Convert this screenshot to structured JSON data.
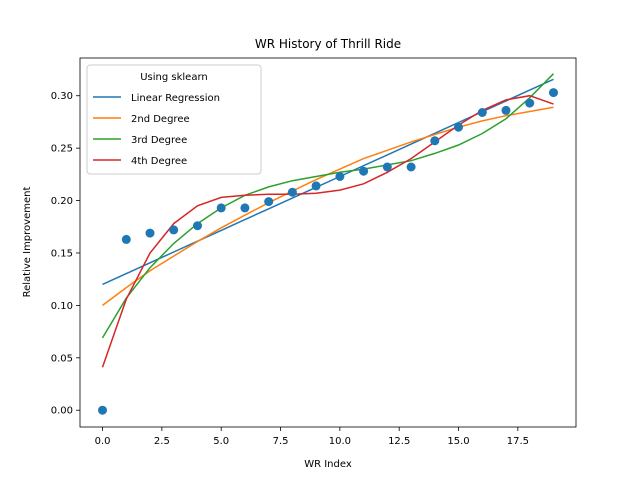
{
  "chart_data": {
    "type": "line",
    "title": "WR History of Thrill Ride",
    "xlabel": "WR Index",
    "ylabel": "Relative Improvement",
    "xlim": [
      -0.95,
      19.95
    ],
    "ylim": [
      -0.016,
      0.336
    ],
    "xticks": [
      0,
      2.5,
      5,
      7.5,
      10,
      12.5,
      15,
      17.5
    ],
    "xtick_labels": [
      "0.0",
      "2.5",
      "5.0",
      "7.5",
      "10.0",
      "12.5",
      "15.0",
      "17.5"
    ],
    "yticks": [
      0,
      0.05,
      0.1,
      0.15,
      0.2,
      0.25,
      0.3
    ],
    "ytick_labels": [
      "0.00",
      "0.05",
      "0.10",
      "0.15",
      "0.20",
      "0.25",
      "0.30"
    ],
    "grid": false,
    "legend": {
      "title": "Using sklearn",
      "placement": "top-left",
      "entries": [
        "Linear Regression",
        "2nd Degree",
        "3rd Degree",
        "4th Degree"
      ]
    },
    "scatter": {
      "color": "#1f77b4",
      "x": [
        0,
        1,
        2,
        3,
        4,
        5,
        6,
        7,
        8,
        9,
        10,
        11,
        12,
        13,
        14,
        15,
        16,
        17,
        18,
        19
      ],
      "y": [
        0.0,
        0.163,
        0.169,
        0.172,
        0.176,
        0.193,
        0.193,
        0.199,
        0.208,
        0.214,
        0.223,
        0.228,
        0.232,
        0.232,
        0.257,
        0.27,
        0.284,
        0.286,
        0.293,
        0.303
      ]
    },
    "x": [
      0,
      1,
      2,
      3,
      4,
      5,
      6,
      7,
      8,
      9,
      10,
      11,
      12,
      13,
      14,
      15,
      16,
      17,
      18,
      19
    ],
    "series": [
      {
        "name": "Linear Regression",
        "color": "#1f77b4",
        "values": [
          0.12,
          0.1303,
          0.1406,
          0.1509,
          0.1612,
          0.1715,
          0.1818,
          0.1921,
          0.2024,
          0.2127,
          0.223,
          0.2333,
          0.2436,
          0.2539,
          0.2642,
          0.2745,
          0.2848,
          0.2951,
          0.3054,
          0.3157
        ]
      },
      {
        "name": "2nd Degree",
        "color": "#ff7f0e",
        "values": [
          0.1,
          0.117,
          0.133,
          0.147,
          0.161,
          0.174,
          0.186,
          0.198,
          0.209,
          0.22,
          0.23,
          0.24,
          0.248,
          0.256,
          0.263,
          0.27,
          0.276,
          0.281,
          0.285,
          0.289
        ]
      },
      {
        "name": "3rd Degree",
        "color": "#2ca02c",
        "values": [
          0.069,
          0.107,
          0.136,
          0.159,
          0.178,
          0.193,
          0.205,
          0.213,
          0.219,
          0.223,
          0.227,
          0.23,
          0.234,
          0.238,
          0.245,
          0.253,
          0.264,
          0.278,
          0.298,
          0.321
        ]
      },
      {
        "name": "4th Degree",
        "color": "#d62728",
        "values": [
          0.041,
          0.106,
          0.15,
          0.178,
          0.195,
          0.203,
          0.205,
          0.206,
          0.206,
          0.207,
          0.21,
          0.216,
          0.227,
          0.24,
          0.256,
          0.272,
          0.286,
          0.296,
          0.3,
          0.292
        ]
      }
    ]
  }
}
